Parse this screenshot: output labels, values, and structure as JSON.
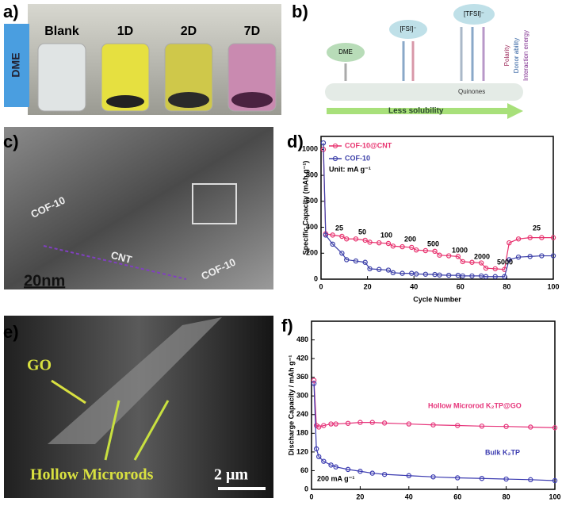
{
  "panels": {
    "a": {
      "label": "a)",
      "solvent": "DME",
      "vials": [
        "Blank",
        "1D",
        "2D",
        "7D"
      ]
    },
    "b": {
      "label": "b)",
      "species": [
        "DME",
        "[FSI]⁻",
        "[TFSI]⁻"
      ],
      "substrate": "Quinones",
      "trend": "Less solubility",
      "properties": [
        "Polarity",
        "Donor ability",
        "Interaction energy"
      ]
    },
    "c": {
      "label": "c)",
      "texts": [
        "COF-10",
        "CNT",
        "20nm",
        "COF-10"
      ]
    },
    "e": {
      "label": "e)",
      "texts": [
        "GO",
        "Hollow Microrods",
        "2 μm"
      ]
    }
  },
  "chart_data": [
    {
      "type": "line",
      "panel_label": "d)",
      "x_label": "Cycle Number",
      "y_label": "Specific Capacity (mAh g⁻¹)",
      "x": [
        1,
        2,
        5,
        9,
        11,
        15,
        19,
        21,
        25,
        29,
        31,
        35,
        39,
        41,
        45,
        49,
        51,
        55,
        59,
        61,
        65,
        69,
        71,
        75,
        79,
        81,
        85,
        90,
        95,
        100
      ],
      "series": [
        {
          "name": "COF-10@CNT",
          "color": "#e8336f",
          "values": [
            1000,
            350,
            340,
            330,
            310,
            310,
            300,
            285,
            280,
            275,
            255,
            250,
            245,
            225,
            220,
            215,
            185,
            180,
            175,
            135,
            130,
            125,
            85,
            80,
            75,
            280,
            310,
            320,
            320,
            320
          ]
        },
        {
          "name": "COF-10",
          "color": "#3b3fa8",
          "values": [
            1050,
            340,
            270,
            200,
            150,
            140,
            130,
            80,
            75,
            70,
            50,
            45,
            45,
            40,
            38,
            36,
            32,
            30,
            30,
            25,
            25,
            25,
            20,
            20,
            20,
            150,
            170,
            175,
            180,
            180
          ]
        }
      ],
      "legend": "upper left",
      "annotations": [
        "Unit: mA g⁻¹",
        "25",
        "50",
        "100",
        "200",
        "500",
        "1000",
        "2000",
        "5000",
        "25"
      ],
      "xlim": [
        0,
        100
      ],
      "xticks": [
        0,
        20,
        40,
        60,
        80,
        100
      ],
      "ylim": [
        0,
        1100
      ],
      "yticks": [
        0,
        200,
        400,
        600,
        800,
        1000
      ]
    },
    {
      "type": "line",
      "panel_label": "f)",
      "x_label": "Cycle Number",
      "y_label": "Discharge Capacity / mAh g⁻¹",
      "x": [
        1,
        2,
        3,
        5,
        8,
        10,
        15,
        20,
        25,
        30,
        40,
        50,
        60,
        70,
        80,
        90,
        100
      ],
      "series": [
        {
          "name": "Hollow Microrod K₂TP@GO",
          "color": "#e6347a",
          "values": [
            350,
            205,
            200,
            205,
            210,
            210,
            212,
            215,
            215,
            213,
            210,
            207,
            205,
            203,
            202,
            200,
            198
          ]
        },
        {
          "name": "Bulk K₂TP",
          "color": "#3a3ab0",
          "values": [
            340,
            130,
            105,
            90,
            78,
            72,
            64,
            58,
            52,
            48,
            44,
            40,
            37,
            35,
            33,
            31,
            28
          ]
        }
      ],
      "annotations": [
        "200 mA g⁻¹"
      ],
      "xlim": [
        0,
        100
      ],
      "xticks": [
        0,
        20,
        40,
        60,
        80,
        100
      ],
      "ylim": [
        0,
        540
      ],
      "yticks": [
        0,
        60,
        120,
        180,
        240,
        300,
        360,
        420,
        480
      ]
    }
  ]
}
